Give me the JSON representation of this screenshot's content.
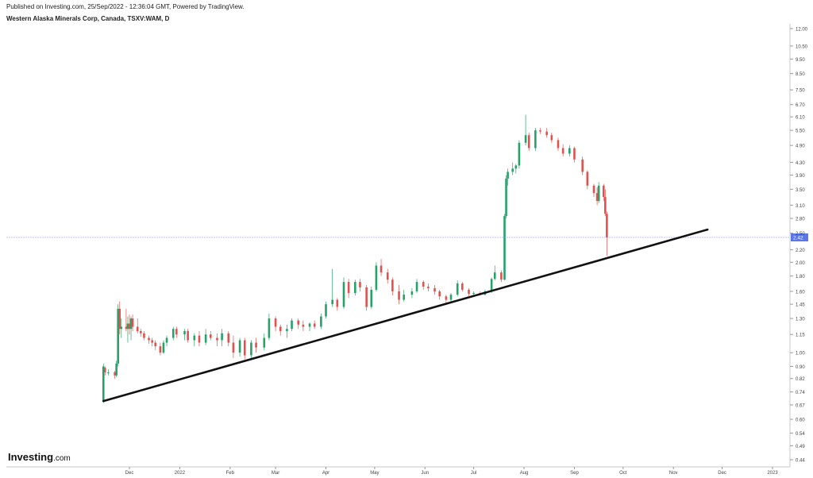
{
  "header": {
    "published": "Published on Investing.com, 25/Sep/2022 - 12:36:04 GMT, Powered by TradingView.",
    "title": "Western Alaska Minerals Corp, Canada, TSXV:WAM, D"
  },
  "logo": {
    "main": "Investing",
    "suffix": ".com"
  },
  "colors": {
    "up": "#26a269",
    "down": "#e0524f",
    "trendline": "#111111",
    "price_line": "#7a88e8",
    "price_badge": "#5b76e8"
  },
  "chart_data": {
    "type": "candlestick",
    "title": "Western Alaska Minerals Corp, Canada, TSXV:WAM, D",
    "y_scale": "log",
    "ylim": [
      0.42,
      12.4
    ],
    "y_ticks": [
      12.0,
      10.5,
      9.5,
      8.5,
      7.5,
      6.7,
      6.1,
      5.5,
      4.9,
      4.3,
      3.9,
      3.5,
      3.1,
      2.8,
      2.5,
      2.2,
      2.0,
      1.8,
      1.6,
      1.45,
      1.3,
      1.15,
      1.0,
      0.9,
      0.82,
      0.74,
      0.67,
      0.6,
      0.54,
      0.49,
      0.44
    ],
    "y_tick_labels": [
      "12.00",
      "10.50",
      "9.50",
      "8.50",
      "7.50",
      "6.70",
      "6.10",
      "5.50",
      "4.90",
      "4.30",
      "3.90",
      "3.50",
      "3.10",
      "2.80",
      "2.50",
      "2.20",
      "2.00",
      "1.80",
      "1.60",
      "1.45",
      "1.30",
      "1.15",
      "1.00",
      "0.90",
      "0.82",
      "0.74",
      "0.67",
      "0.60",
      "0.54",
      "0.49",
      "0.44"
    ],
    "x_ticks": [
      {
        "label": "Dec",
        "date": "2021-12-01"
      },
      {
        "label": "2022",
        "date": "2022-01-01"
      },
      {
        "label": "Feb",
        "date": "2022-02-01"
      },
      {
        "label": "Mar",
        "date": "2022-03-01"
      },
      {
        "label": "Apr",
        "date": "2022-04-01"
      },
      {
        "label": "May",
        "date": "2022-05-01"
      },
      {
        "label": "Jun",
        "date": "2022-06-01"
      },
      {
        "label": "Jul",
        "date": "2022-07-01"
      },
      {
        "label": "Aug",
        "date": "2022-08-01"
      },
      {
        "label": "Sep",
        "date": "2022-09-01"
      },
      {
        "label": "Oct",
        "date": "2022-10-01"
      },
      {
        "label": "Nov",
        "date": "2022-11-01"
      },
      {
        "label": "Dec",
        "date": "2022-12-01"
      },
      {
        "label": "2023",
        "date": "2023-01-01"
      }
    ],
    "last_price": 2.42,
    "last_price_label": "2.42",
    "trendline": {
      "start": {
        "date": "2021-11-15",
        "value": 0.69
      },
      "end": {
        "date": "2022-11-22",
        "value": 2.57
      }
    },
    "candles": [
      {
        "date": "2021-11-15",
        "o": 0.69,
        "h": 0.92,
        "l": 0.68,
        "c": 0.9
      },
      {
        "date": "2021-11-16",
        "o": 0.89,
        "h": 0.9,
        "l": 0.84,
        "c": 0.86
      },
      {
        "date": "2021-11-18",
        "o": 0.86,
        "h": 0.88,
        "l": 0.84,
        "c": 0.86
      },
      {
        "date": "2021-11-22",
        "o": 0.86,
        "h": 0.87,
        "l": 0.82,
        "c": 0.84
      },
      {
        "date": "2021-11-23",
        "o": 0.84,
        "h": 0.94,
        "l": 0.83,
        "c": 0.92
      },
      {
        "date": "2021-11-24",
        "o": 0.92,
        "h": 1.45,
        "l": 0.9,
        "c": 1.4
      },
      {
        "date": "2021-11-25",
        "o": 1.4,
        "h": 1.48,
        "l": 1.15,
        "c": 1.2
      },
      {
        "date": "2021-11-26",
        "o": 1.2,
        "h": 1.3,
        "l": 1.12,
        "c": 1.22
      },
      {
        "date": "2021-11-29",
        "o": 1.22,
        "h": 1.4,
        "l": 1.18,
        "c": 1.2
      },
      {
        "date": "2021-11-30",
        "o": 1.2,
        "h": 1.32,
        "l": 1.08,
        "c": 1.25
      },
      {
        "date": "2021-12-01",
        "o": 1.25,
        "h": 1.34,
        "l": 1.15,
        "c": 1.2
      },
      {
        "date": "2021-12-02",
        "o": 1.2,
        "h": 1.32,
        "l": 1.1,
        "c": 1.3
      },
      {
        "date": "2021-12-03",
        "o": 1.3,
        "h": 1.34,
        "l": 1.18,
        "c": 1.22
      },
      {
        "date": "2021-12-06",
        "o": 1.22,
        "h": 1.3,
        "l": 1.16,
        "c": 1.18
      },
      {
        "date": "2021-12-08",
        "o": 1.18,
        "h": 1.2,
        "l": 1.13,
        "c": 1.16
      },
      {
        "date": "2021-12-10",
        "o": 1.16,
        "h": 1.18,
        "l": 1.1,
        "c": 1.12
      },
      {
        "date": "2021-12-13",
        "o": 1.12,
        "h": 1.14,
        "l": 1.07,
        "c": 1.1
      },
      {
        "date": "2021-12-15",
        "o": 1.1,
        "h": 1.12,
        "l": 1.05,
        "c": 1.08
      },
      {
        "date": "2021-12-17",
        "o": 1.08,
        "h": 1.1,
        "l": 1.02,
        "c": 1.05
      },
      {
        "date": "2021-12-20",
        "o": 1.05,
        "h": 1.08,
        "l": 0.98,
        "c": 1.0
      },
      {
        "date": "2021-12-22",
        "o": 1.0,
        "h": 1.1,
        "l": 0.99,
        "c": 1.08
      },
      {
        "date": "2021-12-24",
        "o": 1.08,
        "h": 1.14,
        "l": 1.05,
        "c": 1.12
      },
      {
        "date": "2021-12-28",
        "o": 1.12,
        "h": 1.22,
        "l": 1.1,
        "c": 1.2
      },
      {
        "date": "2021-12-30",
        "o": 1.2,
        "h": 1.22,
        "l": 1.12,
        "c": 1.15
      },
      {
        "date": "2022-01-04",
        "o": 1.15,
        "h": 1.2,
        "l": 1.1,
        "c": 1.18
      },
      {
        "date": "2022-01-06",
        "o": 1.18,
        "h": 1.2,
        "l": 1.08,
        "c": 1.1
      },
      {
        "date": "2022-01-10",
        "o": 1.1,
        "h": 1.16,
        "l": 1.05,
        "c": 1.14
      },
      {
        "date": "2022-01-13",
        "o": 1.14,
        "h": 1.18,
        "l": 1.05,
        "c": 1.08
      },
      {
        "date": "2022-01-17",
        "o": 1.08,
        "h": 1.2,
        "l": 1.06,
        "c": 1.15
      },
      {
        "date": "2022-01-20",
        "o": 1.15,
        "h": 1.18,
        "l": 1.1,
        "c": 1.12
      },
      {
        "date": "2022-01-24",
        "o": 1.12,
        "h": 1.16,
        "l": 1.05,
        "c": 1.1
      },
      {
        "date": "2022-01-27",
        "o": 1.1,
        "h": 1.2,
        "l": 1.05,
        "c": 1.16
      },
      {
        "date": "2022-01-31",
        "o": 1.16,
        "h": 1.18,
        "l": 1.05,
        "c": 1.08
      },
      {
        "date": "2022-02-03",
        "o": 1.08,
        "h": 1.14,
        "l": 0.96,
        "c": 1.0
      },
      {
        "date": "2022-02-07",
        "o": 1.0,
        "h": 1.12,
        "l": 0.97,
        "c": 1.1
      },
      {
        "date": "2022-02-10",
        "o": 1.1,
        "h": 1.12,
        "l": 0.95,
        "c": 0.98
      },
      {
        "date": "2022-02-14",
        "o": 0.98,
        "h": 1.1,
        "l": 0.95,
        "c": 1.08
      },
      {
        "date": "2022-02-17",
        "o": 1.08,
        "h": 1.12,
        "l": 1.0,
        "c": 1.04
      },
      {
        "date": "2022-02-22",
        "o": 1.04,
        "h": 1.16,
        "l": 1.02,
        "c": 1.12
      },
      {
        "date": "2022-02-25",
        "o": 1.12,
        "h": 1.35,
        "l": 1.1,
        "c": 1.3
      },
      {
        "date": "2022-03-01",
        "o": 1.3,
        "h": 1.32,
        "l": 1.18,
        "c": 1.22
      },
      {
        "date": "2022-03-04",
        "o": 1.22,
        "h": 1.24,
        "l": 1.14,
        "c": 1.18
      },
      {
        "date": "2022-03-08",
        "o": 1.18,
        "h": 1.24,
        "l": 1.12,
        "c": 1.2
      },
      {
        "date": "2022-03-11",
        "o": 1.2,
        "h": 1.3,
        "l": 1.18,
        "c": 1.28
      },
      {
        "date": "2022-03-15",
        "o": 1.28,
        "h": 1.3,
        "l": 1.2,
        "c": 1.24
      },
      {
        "date": "2022-03-18",
        "o": 1.24,
        "h": 1.28,
        "l": 1.18,
        "c": 1.22
      },
      {
        "date": "2022-03-22",
        "o": 1.22,
        "h": 1.26,
        "l": 1.18,
        "c": 1.25
      },
      {
        "date": "2022-03-25",
        "o": 1.25,
        "h": 1.28,
        "l": 1.2,
        "c": 1.22
      },
      {
        "date": "2022-03-29",
        "o": 1.22,
        "h": 1.35,
        "l": 1.2,
        "c": 1.32
      },
      {
        "date": "2022-04-01",
        "o": 1.32,
        "h": 1.48,
        "l": 1.3,
        "c": 1.45
      },
      {
        "date": "2022-04-05",
        "o": 1.45,
        "h": 1.9,
        "l": 1.42,
        "c": 1.5
      },
      {
        "date": "2022-04-08",
        "o": 1.5,
        "h": 1.52,
        "l": 1.38,
        "c": 1.42
      },
      {
        "date": "2022-04-12",
        "o": 1.42,
        "h": 1.78,
        "l": 1.4,
        "c": 1.72
      },
      {
        "date": "2022-04-15",
        "o": 1.72,
        "h": 1.76,
        "l": 1.52,
        "c": 1.58
      },
      {
        "date": "2022-04-19",
        "o": 1.58,
        "h": 1.75,
        "l": 1.55,
        "c": 1.72
      },
      {
        "date": "2022-04-22",
        "o": 1.72,
        "h": 1.76,
        "l": 1.6,
        "c": 1.65
      },
      {
        "date": "2022-04-26",
        "o": 1.65,
        "h": 1.68,
        "l": 1.38,
        "c": 1.42
      },
      {
        "date": "2022-04-29",
        "o": 1.42,
        "h": 1.66,
        "l": 1.4,
        "c": 1.62
      },
      {
        "date": "2022-05-02",
        "o": 1.62,
        "h": 2.0,
        "l": 1.6,
        "c": 1.95
      },
      {
        "date": "2022-05-05",
        "o": 1.95,
        "h": 2.05,
        "l": 1.8,
        "c": 1.85
      },
      {
        "date": "2022-05-09",
        "o": 1.85,
        "h": 1.9,
        "l": 1.7,
        "c": 1.75
      },
      {
        "date": "2022-05-12",
        "o": 1.75,
        "h": 1.78,
        "l": 1.55,
        "c": 1.6
      },
      {
        "date": "2022-05-16",
        "o": 1.6,
        "h": 1.68,
        "l": 1.45,
        "c": 1.5
      },
      {
        "date": "2022-05-19",
        "o": 1.5,
        "h": 1.62,
        "l": 1.48,
        "c": 1.56
      },
      {
        "date": "2022-05-24",
        "o": 1.56,
        "h": 1.64,
        "l": 1.52,
        "c": 1.6
      },
      {
        "date": "2022-05-27",
        "o": 1.6,
        "h": 1.76,
        "l": 1.58,
        "c": 1.72
      },
      {
        "date": "2022-05-31",
        "o": 1.72,
        "h": 1.74,
        "l": 1.62,
        "c": 1.66
      },
      {
        "date": "2022-06-03",
        "o": 1.66,
        "h": 1.7,
        "l": 1.6,
        "c": 1.64
      },
      {
        "date": "2022-06-07",
        "o": 1.64,
        "h": 1.68,
        "l": 1.56,
        "c": 1.6
      },
      {
        "date": "2022-06-10",
        "o": 1.6,
        "h": 1.62,
        "l": 1.5,
        "c": 1.54
      },
      {
        "date": "2022-06-14",
        "o": 1.54,
        "h": 1.56,
        "l": 1.46,
        "c": 1.5
      },
      {
        "date": "2022-06-17",
        "o": 1.5,
        "h": 1.58,
        "l": 1.48,
        "c": 1.56
      },
      {
        "date": "2022-06-21",
        "o": 1.56,
        "h": 1.74,
        "l": 1.54,
        "c": 1.7
      },
      {
        "date": "2022-06-24",
        "o": 1.7,
        "h": 1.72,
        "l": 1.6,
        "c": 1.62
      },
      {
        "date": "2022-06-28",
        "o": 1.62,
        "h": 1.64,
        "l": 1.54,
        "c": 1.57
      },
      {
        "date": "2022-07-01",
        "o": 1.57,
        "h": 1.6,
        "l": 1.54,
        "c": 1.58
      },
      {
        "date": "2022-07-05",
        "o": 1.58,
        "h": 1.6,
        "l": 1.55,
        "c": 1.56
      },
      {
        "date": "2022-07-08",
        "o": 1.56,
        "h": 1.62,
        "l": 1.55,
        "c": 1.6
      },
      {
        "date": "2022-07-12",
        "o": 1.6,
        "h": 1.78,
        "l": 1.58,
        "c": 1.76
      },
      {
        "date": "2022-07-14",
        "o": 1.76,
        "h": 1.95,
        "l": 1.74,
        "c": 1.85
      },
      {
        "date": "2022-07-18",
        "o": 1.85,
        "h": 1.88,
        "l": 1.72,
        "c": 1.75
      },
      {
        "date": "2022-07-20",
        "o": 1.75,
        "h": 2.9,
        "l": 1.74,
        "c": 2.85
      },
      {
        "date": "2022-07-21",
        "o": 2.85,
        "h": 3.9,
        "l": 2.8,
        "c": 3.8
      },
      {
        "date": "2022-07-22",
        "o": 3.8,
        "h": 4.1,
        "l": 3.6,
        "c": 4.0
      },
      {
        "date": "2022-07-25",
        "o": 4.0,
        "h": 4.3,
        "l": 3.9,
        "c": 4.1
      },
      {
        "date": "2022-07-27",
        "o": 4.1,
        "h": 4.25,
        "l": 3.95,
        "c": 4.2
      },
      {
        "date": "2022-07-29",
        "o": 4.2,
        "h": 5.1,
        "l": 4.1,
        "c": 5.0
      },
      {
        "date": "2022-08-02",
        "o": 5.0,
        "h": 6.2,
        "l": 4.9,
        "c": 5.3
      },
      {
        "date": "2022-08-04",
        "o": 5.3,
        "h": 5.4,
        "l": 4.7,
        "c": 4.8
      },
      {
        "date": "2022-08-08",
        "o": 4.8,
        "h": 5.6,
        "l": 4.7,
        "c": 5.5
      },
      {
        "date": "2022-08-11",
        "o": 5.5,
        "h": 5.6,
        "l": 5.35,
        "c": 5.45
      },
      {
        "date": "2022-08-15",
        "o": 5.45,
        "h": 5.6,
        "l": 5.2,
        "c": 5.3
      },
      {
        "date": "2022-08-18",
        "o": 5.3,
        "h": 5.4,
        "l": 5.0,
        "c": 5.1
      },
      {
        "date": "2022-08-22",
        "o": 5.1,
        "h": 5.2,
        "l": 4.7,
        "c": 4.8
      },
      {
        "date": "2022-08-25",
        "o": 4.8,
        "h": 4.95,
        "l": 4.5,
        "c": 4.6
      },
      {
        "date": "2022-08-29",
        "o": 4.6,
        "h": 4.9,
        "l": 4.5,
        "c": 4.8
      },
      {
        "date": "2022-09-01",
        "o": 4.8,
        "h": 4.85,
        "l": 4.3,
        "c": 4.4
      },
      {
        "date": "2022-09-06",
        "o": 4.4,
        "h": 4.5,
        "l": 3.9,
        "c": 4.0
      },
      {
        "date": "2022-09-09",
        "o": 4.0,
        "h": 4.05,
        "l": 3.5,
        "c": 3.6
      },
      {
        "date": "2022-09-13",
        "o": 3.6,
        "h": 3.65,
        "l": 3.3,
        "c": 3.4
      },
      {
        "date": "2022-09-15",
        "o": 3.4,
        "h": 3.55,
        "l": 3.1,
        "c": 3.2
      },
      {
        "date": "2022-09-16",
        "o": 3.2,
        "h": 3.7,
        "l": 3.15,
        "c": 3.6
      },
      {
        "date": "2022-09-19",
        "o": 3.6,
        "h": 3.65,
        "l": 3.2,
        "c": 3.3
      },
      {
        "date": "2022-09-20",
        "o": 3.3,
        "h": 3.5,
        "l": 2.85,
        "c": 2.9
      },
      {
        "date": "2022-09-21",
        "o": 2.9,
        "h": 2.95,
        "l": 2.1,
        "c": 2.42
      }
    ]
  }
}
